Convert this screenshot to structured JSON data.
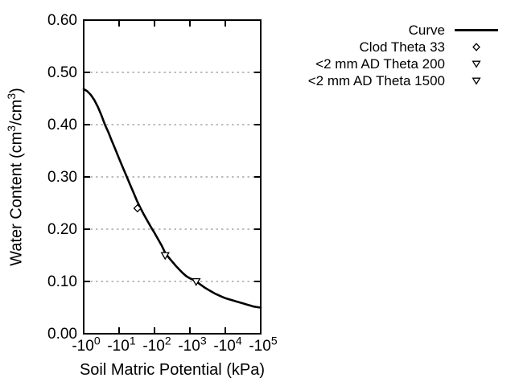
{
  "figure": {
    "background": "#ffffff",
    "axis_color": "#000000",
    "grid_color": "#a6a6a6",
    "curve_color": "#000000",
    "marker_fill": "#ffffff"
  },
  "chart_data": {
    "type": "line",
    "title": "",
    "xlabel": "Soil Matric Potential (kPa)",
    "ylabel": "Water Content (cm3/cm3)",
    "ylabel_parts": [
      {
        "t": "Water Content (cm"
      },
      {
        "t": "3",
        "sup": true
      },
      {
        "t": "/cm"
      },
      {
        "t": "3",
        "sup": true
      },
      {
        "t": ")"
      }
    ],
    "x_scale": "negative logarithmic, ticks at -10^0 .. -10^5 kPa",
    "x_ticks": [
      {
        "base": "-10",
        "exp": "0",
        "log10": 0
      },
      {
        "base": "-10",
        "exp": "1",
        "log10": 1
      },
      {
        "base": "-10",
        "exp": "2",
        "log10": 2
      },
      {
        "base": "-10",
        "exp": "3",
        "log10": 3
      },
      {
        "base": "-10",
        "exp": "4",
        "log10": 4
      },
      {
        "base": "-10",
        "exp": "5",
        "log10": 5
      }
    ],
    "y_ticks": [
      "0.00",
      "0.10",
      "0.20",
      "0.30",
      "0.40",
      "0.50",
      "0.60"
    ],
    "ylim": [
      0.0,
      0.6
    ],
    "xlim_log10": [
      0,
      5
    ],
    "grid": "horizontal dotted gridlines at 0.10, 0.20, 0.30, 0.40, 0.50",
    "grid_y_values": [
      0.1,
      0.2,
      0.3,
      0.4,
      0.5
    ],
    "legend_position": "outside top-right",
    "legend": [
      {
        "label": "Curve",
        "marker": "line"
      },
      {
        "label": "Clod Theta 33",
        "marker": "diamond"
      },
      {
        "label": "<2 mm AD Theta 200",
        "marker": "triangle-down"
      },
      {
        "label": "<2 mm AD Theta 1500",
        "marker": "triangle-down"
      }
    ],
    "series": [
      {
        "name": "Curve",
        "type": "line",
        "x_unit": "log10(|kPa|)",
        "points": [
          [
            0.0,
            0.468
          ],
          [
            0.1,
            0.464
          ],
          [
            0.2,
            0.457
          ],
          [
            0.3,
            0.447
          ],
          [
            0.4,
            0.434
          ],
          [
            0.5,
            0.418
          ],
          [
            0.6,
            0.4
          ],
          [
            0.7,
            0.385
          ],
          [
            0.8,
            0.368
          ],
          [
            0.9,
            0.352
          ],
          [
            1.0,
            0.335
          ],
          [
            1.1,
            0.319
          ],
          [
            1.2,
            0.303
          ],
          [
            1.3,
            0.287
          ],
          [
            1.4,
            0.271
          ],
          [
            1.5,
            0.255
          ],
          [
            1.6,
            0.241
          ],
          [
            1.7,
            0.228
          ],
          [
            1.8,
            0.216
          ],
          [
            1.9,
            0.204
          ],
          [
            2.0,
            0.193
          ],
          [
            2.1,
            0.181
          ],
          [
            2.2,
            0.169
          ],
          [
            2.3,
            0.155
          ],
          [
            2.4,
            0.146
          ],
          [
            2.5,
            0.138
          ],
          [
            2.6,
            0.13
          ],
          [
            2.7,
            0.123
          ],
          [
            2.8,
            0.116
          ],
          [
            2.9,
            0.11
          ],
          [
            3.0,
            0.106
          ],
          [
            3.1,
            0.103
          ],
          [
            3.2,
            0.099
          ],
          [
            3.3,
            0.094
          ],
          [
            3.4,
            0.089
          ],
          [
            3.5,
            0.085
          ],
          [
            3.6,
            0.081
          ],
          [
            3.7,
            0.077
          ],
          [
            3.8,
            0.074
          ],
          [
            3.9,
            0.071
          ],
          [
            4.0,
            0.068
          ],
          [
            4.1,
            0.066
          ],
          [
            4.2,
            0.064
          ],
          [
            4.3,
            0.062
          ],
          [
            4.4,
            0.06
          ],
          [
            4.5,
            0.058
          ],
          [
            4.6,
            0.056
          ],
          [
            4.7,
            0.054
          ],
          [
            4.8,
            0.052
          ],
          [
            4.9,
            0.051
          ],
          [
            5.0,
            0.05
          ]
        ]
      },
      {
        "name": "Clod Theta 33",
        "type": "scatter",
        "marker": "diamond",
        "points": [
          {
            "kpa": -33,
            "theta": 0.24
          }
        ]
      },
      {
        "name": "<2 mm AD Theta 200",
        "type": "scatter",
        "marker": "triangle-down",
        "points": [
          {
            "kpa": -200,
            "theta": 0.15
          }
        ]
      },
      {
        "name": "<2 mm AD Theta 1500",
        "type": "scatter",
        "marker": "triangle-down",
        "points": [
          {
            "kpa": -1500,
            "theta": 0.1
          }
        ]
      }
    ]
  }
}
